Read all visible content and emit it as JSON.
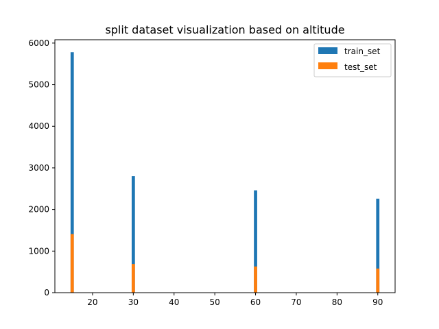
{
  "chart_data": {
    "type": "bar",
    "title": "split dataset visualization based on altitude",
    "xlabel": "",
    "ylabel": "",
    "xlim": [
      10.75,
      94.25
    ],
    "ylim": [
      0,
      6080
    ],
    "x_ticks": [
      20,
      30,
      40,
      50,
      60,
      70,
      80,
      90
    ],
    "y_ticks": [
      0,
      1000,
      2000,
      3000,
      4000,
      5000,
      6000
    ],
    "x": [
      15,
      30,
      60,
      90
    ],
    "bar_width": 0.8,
    "series": [
      {
        "name": "train_set",
        "color": "#1f77b4",
        "values": [
          5780,
          2800,
          2460,
          2260
        ]
      },
      {
        "name": "test_set",
        "color": "#ff7f0e",
        "values": [
          1410,
          690,
          630,
          580
        ]
      }
    ],
    "grid": false,
    "legend_position": "top-right"
  }
}
